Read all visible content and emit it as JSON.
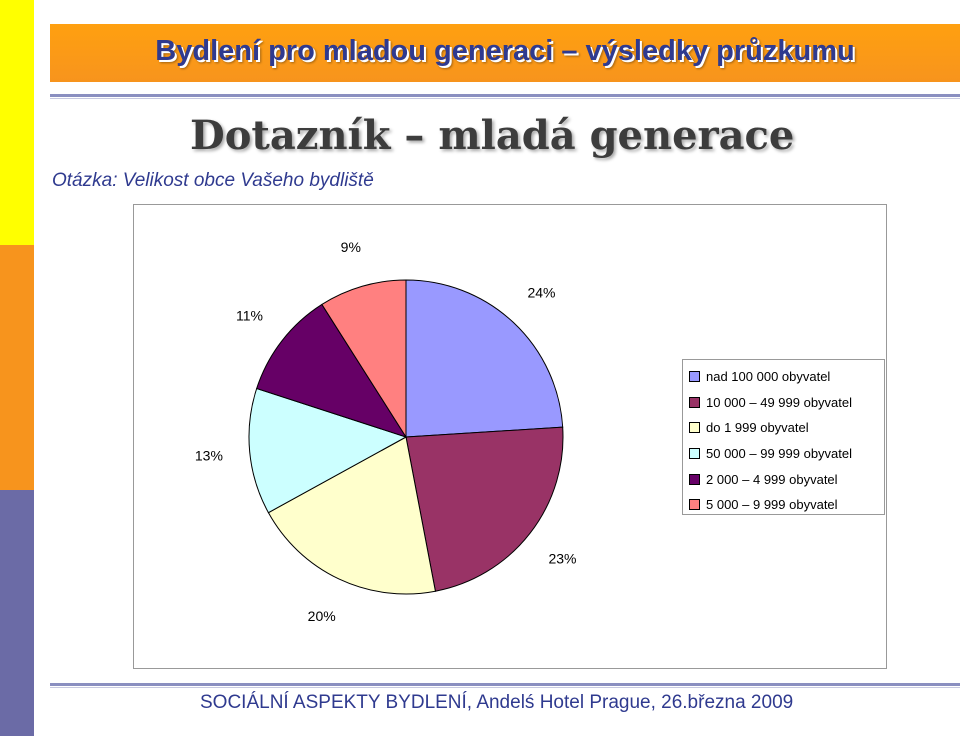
{
  "header": {
    "title": "Bydlení pro mladou generaci – výsledky průzkumu"
  },
  "main": {
    "title": "Dotazník – mladá generace",
    "question": "Otázka: Velikost obce Vašeho bydliště"
  },
  "chart_data": {
    "type": "pie",
    "title": "",
    "slices": [
      {
        "label": "nad 100 000 obyvatel",
        "value": 24,
        "display": "24%",
        "color": "#9999ff"
      },
      {
        "label": "10 000 – 49 999 obyvatel",
        "value": 23,
        "display": "23%",
        "color": "#993366"
      },
      {
        "label": "do 1 999 obyvatel",
        "value": 20,
        "display": "20%",
        "color": "#ffffcc"
      },
      {
        "label": "50 000 – 99 999 obyvatel",
        "value": 13,
        "display": "13%",
        "color": "#ccffff"
      },
      {
        "label": "2 000 – 4 999 obyvatel",
        "value": 11,
        "display": "11%",
        "color": "#660066"
      },
      {
        "label": "5 000 – 9 999 obyvatel",
        "value": 9,
        "display": "9%",
        "color": "#ff8080"
      }
    ],
    "legend_position": "right"
  },
  "footer": {
    "text": "SOCIÁLNÍ ASPEKTY BYDLENÍ, Andelś Hotel Prague, 26.března 2009"
  }
}
